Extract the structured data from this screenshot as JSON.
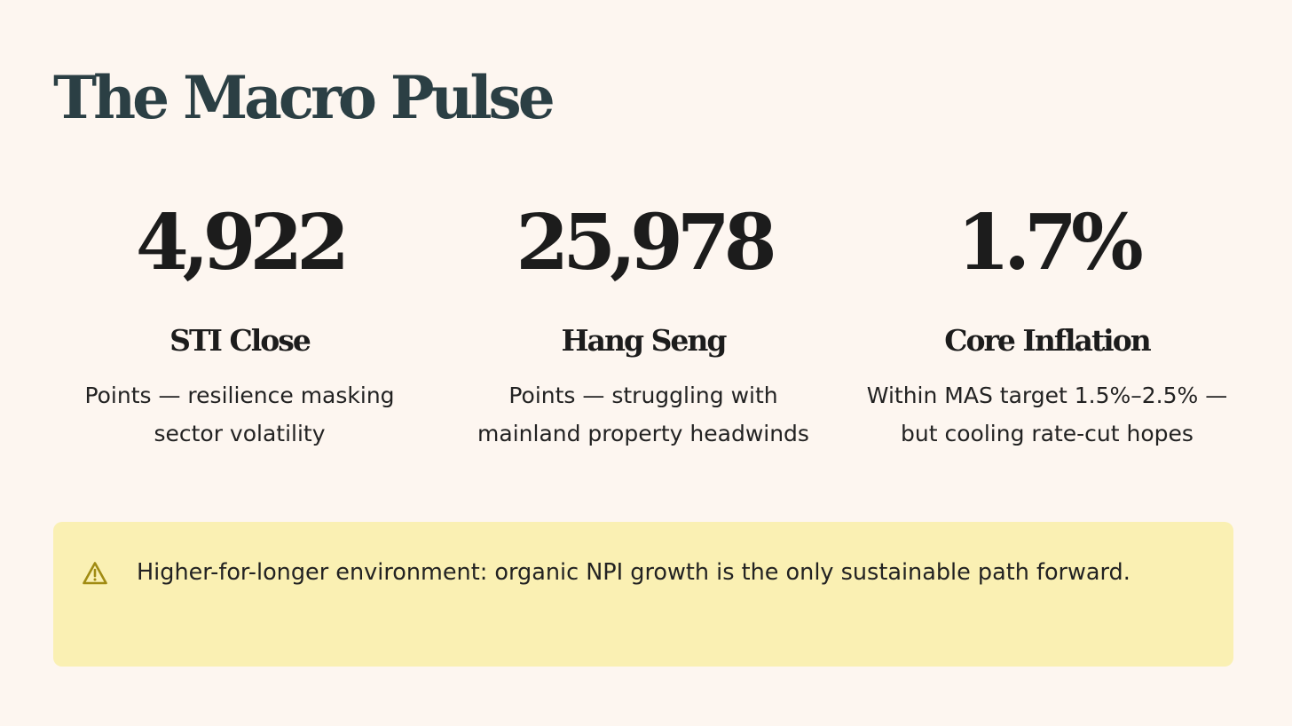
{
  "title": "The Macro Pulse",
  "stats": [
    {
      "value": "4,922",
      "label": "STI Close",
      "description": "Points — resilience masking sector volatility"
    },
    {
      "value": "25,978",
      "label": "Hang Seng",
      "description": "Points — struggling with mainland property headwinds"
    },
    {
      "value": "1.7%",
      "label": "Core Inflation",
      "description": "Within MAS target 1.5%–2.5% — but cooling rate-cut hopes"
    }
  ],
  "callout": {
    "icon": "warning-icon",
    "text": "Higher-for-longer environment: organic NPI growth is the only sustainable path forward."
  },
  "colors": {
    "background": "#fdf6f0",
    "title": "#2b3f44",
    "text": "#1c1c1c",
    "callout_background": "#faf0b3",
    "callout_icon": "#a08b12"
  }
}
